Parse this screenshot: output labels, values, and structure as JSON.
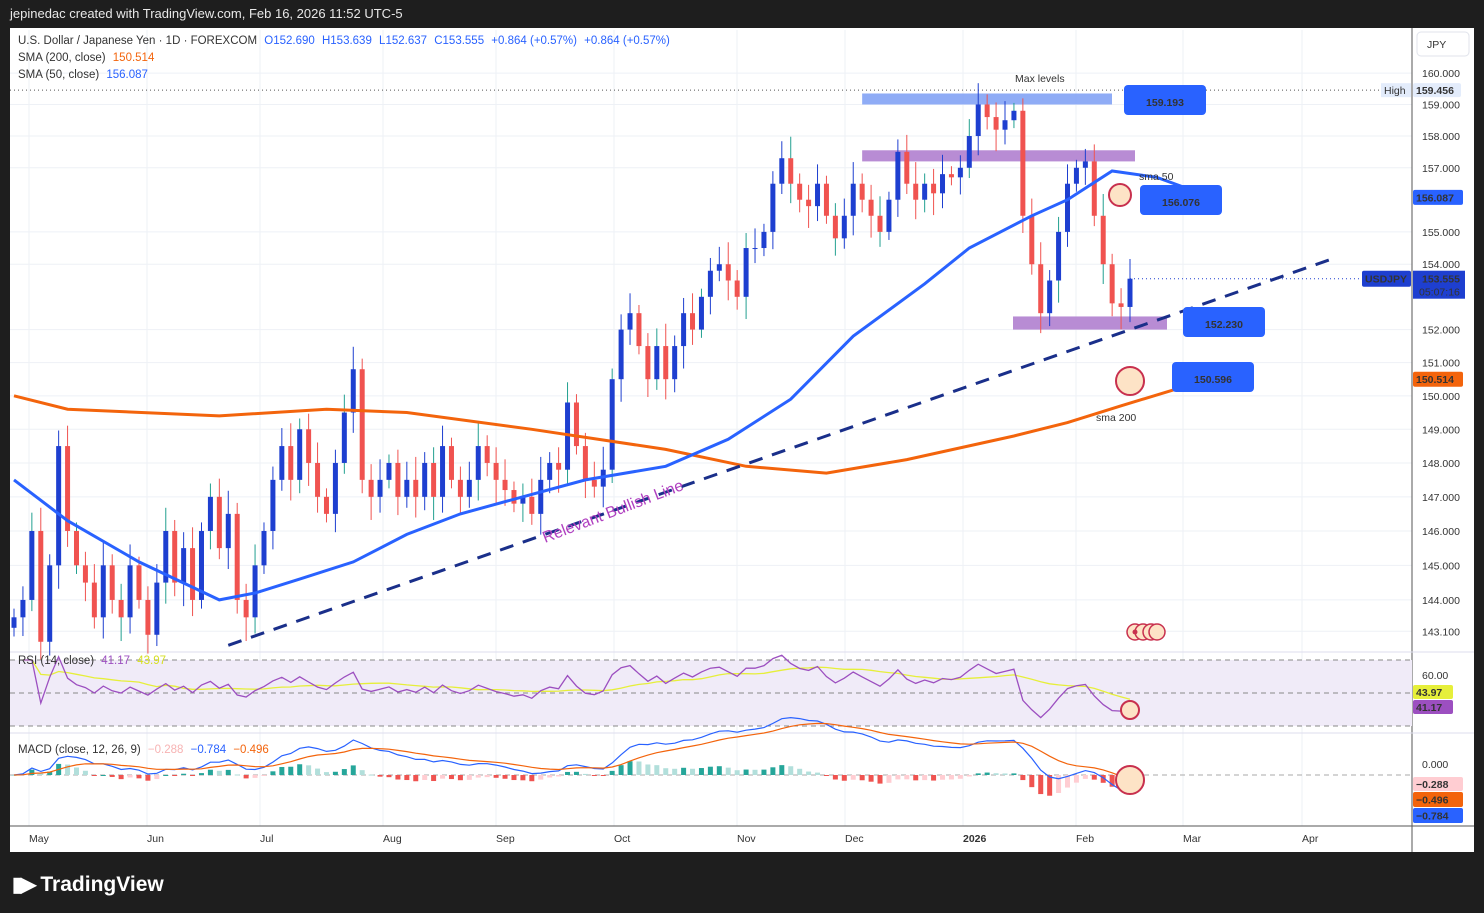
{
  "header": {
    "credit": "jepinedac created with TradingView.com, Feb 16, 2026 11:52 UTC-5"
  },
  "legend": {
    "symbol": "U.S. Dollar / Japanese Yen · 1D · FOREXCOM",
    "open": "O152.690",
    "high": "H153.639",
    "low": "L152.637",
    "close": "C153.555",
    "change1": "+0.864 (+0.57%)",
    "change2": "+0.864 (+0.57%)",
    "sma200_label": "SMA (200, close)",
    "sma200_value": "150.514",
    "sma50_label": "SMA (50, close)",
    "sma50_value": "156.087",
    "rsi_label": "RSI (14, close)",
    "rsi_value": "41.17",
    "rsi_ma_value": "43.97",
    "macd_label": "MACD (close, 12, 26, 9)",
    "macd_hist": "−0.288",
    "macd_line": "−0.784",
    "macd_signal": "−0.496"
  },
  "axis": {
    "currency": "JPY",
    "price_ticks": [
      "160.000",
      "159.000",
      "158.000",
      "157.000",
      "155.000",
      "154.000",
      "152.000",
      "151.000",
      "150.000",
      "149.000",
      "148.000",
      "147.000",
      "146.000",
      "145.000",
      "144.000",
      "143.100"
    ],
    "high_tag": "High",
    "high_value": "159.456",
    "sma50_tag": "156.087",
    "symbol_tag": "USDJPY",
    "last_price": "153.555",
    "countdown": "05:07:16",
    "sma200_tag": "150.514",
    "rsi_tick": "60.00",
    "rsi_ma_tag": "43.97",
    "rsi_tag": "41.17",
    "macd_tick": "0.000",
    "macd_hist_tag": "−0.288",
    "macd_signal_tag": "−0.496",
    "macd_line_tag": "−0.784",
    "time_labels": [
      "May",
      "Jun",
      "Jul",
      "Aug",
      "Sep",
      "Oct",
      "Nov",
      "Dec",
      "2026",
      "Feb",
      "Mar",
      "Apr"
    ]
  },
  "annotations": {
    "max_levels": "Max levels",
    "max_value": "159.193",
    "sma50_text": "sma 50",
    "sma50_value": "156.076",
    "support_value": "152.230",
    "sma200_value": "150.596",
    "sma200_text": "sma 200",
    "trendline_text": "Relevant Bullish Line"
  },
  "brand": "TradingView",
  "colors": {
    "up": "#1e3fd0",
    "down": "#f05350",
    "sma50": "#2962ff",
    "sma200": "#f3640c",
    "rsi": "#9c4fc0",
    "rsi_ma": "#e6ef3a",
    "accent": "#2962ff"
  },
  "chart_data": {
    "type": "candlestick",
    "title": "U.S. Dollar / Japanese Yen · 1D · FOREXCOM",
    "ylabel": "JPY",
    "yscale": "log",
    "ylim": [
      142.6,
      160.6
    ],
    "x_months": [
      "May",
      "Jun",
      "Jul",
      "Aug",
      "Sep",
      "Oct",
      "Nov",
      "Dec",
      "2026",
      "Feb",
      "Mar",
      "Apr"
    ],
    "closes": [
      143.5,
      144,
      146,
      142.8,
      145,
      148.5,
      146,
      145,
      144.5,
      143.5,
      145,
      144,
      143.5,
      145,
      144,
      143,
      144.5,
      146,
      144.5,
      145.5,
      144,
      146,
      147,
      145.5,
      146.5,
      144,
      143.5,
      145,
      146,
      147.5,
      148.5,
      147.5,
      149,
      148,
      147,
      146.5,
      148,
      149.5,
      150.8,
      147.5,
      147,
      147.5,
      148,
      147,
      147.5,
      147,
      148,
      147,
      148.5,
      147.5,
      147,
      147.5,
      148.5,
      148,
      147.5,
      147.2,
      146.8,
      147,
      146.5,
      147.5,
      148,
      147.8,
      149.8,
      148.5,
      147.5,
      147.3,
      147.8,
      150.5,
      152,
      152.5,
      151.5,
      150.5,
      151.5,
      150.5,
      151.5,
      152.5,
      152,
      153,
      153.8,
      154,
      153.5,
      153,
      154.5,
      154.5,
      155,
      156.5,
      157.3,
      156.5,
      156,
      155.8,
      156.5,
      155.5,
      154.8,
      155.5,
      156.5,
      156,
      155.5,
      155,
      156,
      157.5,
      156.5,
      156,
      156.5,
      156.2,
      156.8,
      156.7,
      157,
      158,
      159,
      158.6,
      158.2,
      158.5,
      158.8,
      155.5,
      154,
      152.5,
      153.5,
      155,
      156.5,
      157,
      157.2,
      155.5,
      154,
      152.8,
      152.69,
      153.555
    ],
    "sma200": [
      [
        0,
        150.0
      ],
      [
        6,
        149.6
      ],
      [
        23,
        149.4
      ],
      [
        35,
        149.6
      ],
      [
        44,
        149.5
      ],
      [
        58,
        149.0
      ],
      [
        73,
        148.4
      ],
      [
        82,
        147.9
      ],
      [
        91,
        147.7
      ],
      [
        100,
        148.1
      ],
      [
        112,
        148.8
      ],
      [
        118,
        149.2
      ],
      [
        124,
        149.7
      ],
      [
        134,
        150.514
      ]
    ],
    "sma50": [
      [
        0,
        147.5
      ],
      [
        6,
        146.3
      ],
      [
        14,
        145.1
      ],
      [
        23,
        144.0
      ],
      [
        27,
        144.2
      ],
      [
        32,
        144.6
      ],
      [
        38,
        145.1
      ],
      [
        44,
        145.9
      ],
      [
        50,
        146.5
      ],
      [
        57,
        147.0
      ],
      [
        64,
        147.5
      ],
      [
        73,
        147.9
      ],
      [
        80,
        148.7
      ],
      [
        87,
        149.9
      ],
      [
        94,
        151.8
      ],
      [
        102,
        153.4
      ],
      [
        107,
        154.5
      ],
      [
        114,
        155.5
      ],
      [
        118,
        156.0
      ],
      [
        123,
        156.9
      ],
      [
        128,
        156.7
      ],
      [
        134,
        156.087
      ]
    ],
    "zones": [
      {
        "name": "max-levels",
        "from": 126.5,
        "to": 159.2,
        "top": 159.35,
        "start": 95
      },
      {
        "name": "resistance",
        "top": 157.55,
        "bottom": 157.2,
        "start": 95
      },
      {
        "name": "support",
        "top": 152.4,
        "bottom": 152.0,
        "start": 120
      }
    ],
    "trendline": {
      "from": [
        24,
        142.7
      ],
      "to": [
        148,
        154.2
      ]
    },
    "rsi_bands": [
      30,
      50,
      70
    ]
  }
}
